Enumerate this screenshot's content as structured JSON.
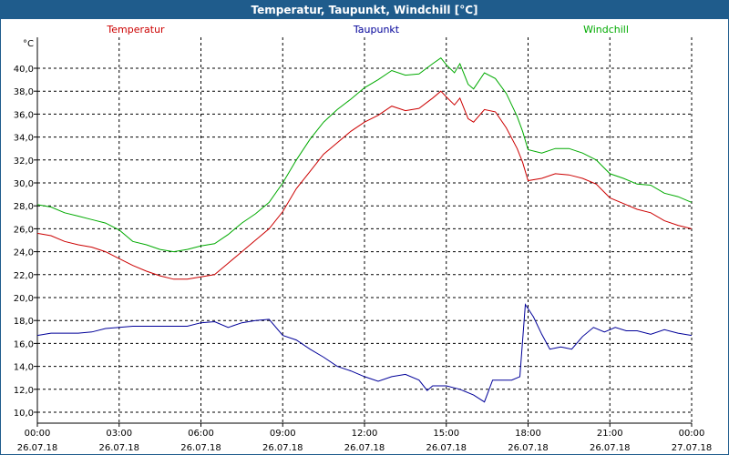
{
  "window": {
    "title": "Temperatur, Taupunkt, Windchill [°C]"
  },
  "chart_data": {
    "type": "line",
    "title": "Temperatur, Taupunkt, Windchill [°C]",
    "ylabel": "°C",
    "ylim": [
      10,
      41
    ],
    "yticks": [
      "40,0",
      "38,0",
      "36,0",
      "34,0",
      "32,0",
      "30,0",
      "28,0",
      "26,0",
      "24,0",
      "22,0",
      "20,0",
      "18,0",
      "16,0",
      "14,0",
      "12,0",
      "10,0"
    ],
    "ytick_values": [
      40,
      38,
      36,
      34,
      32,
      30,
      28,
      26,
      24,
      22,
      20,
      18,
      16,
      14,
      12,
      10
    ],
    "xlim": [
      0,
      24
    ],
    "xticks": [
      {
        "time": "00:00",
        "date": "26.07.18"
      },
      {
        "time": "03:00",
        "date": "26.07.18"
      },
      {
        "time": "06:00",
        "date": "26.07.18"
      },
      {
        "time": "09:00",
        "date": "26.07.18"
      },
      {
        "time": "12:00",
        "date": "26.07.18"
      },
      {
        "time": "15:00",
        "date": "26.07.18"
      },
      {
        "time": "18:00",
        "date": "26.07.18"
      },
      {
        "time": "21:00",
        "date": "26.07.18"
      },
      {
        "time": "00:00",
        "date": "27.07.18"
      }
    ],
    "grid": true,
    "legend_position": "top",
    "series": [
      {
        "name": "Temperatur",
        "color": "#cc0000",
        "points": [
          [
            0,
            25.6
          ],
          [
            0.5,
            25.4
          ],
          [
            1,
            24.9
          ],
          [
            1.5,
            24.6
          ],
          [
            2,
            24.4
          ],
          [
            2.5,
            24.0
          ],
          [
            3,
            23.4
          ],
          [
            3.5,
            22.8
          ],
          [
            4,
            22.3
          ],
          [
            4.5,
            21.9
          ],
          [
            5,
            21.6
          ],
          [
            5.5,
            21.6
          ],
          [
            6,
            21.8
          ],
          [
            6.5,
            22.0
          ],
          [
            7,
            23.0
          ],
          [
            7.5,
            24.0
          ],
          [
            8,
            25.0
          ],
          [
            8.5,
            26.0
          ],
          [
            9,
            27.5
          ],
          [
            9.5,
            29.5
          ],
          [
            10,
            31.0
          ],
          [
            10.5,
            32.5
          ],
          [
            11,
            33.5
          ],
          [
            11.5,
            34.5
          ],
          [
            12,
            35.3
          ],
          [
            12.5,
            35.9
          ],
          [
            13,
            36.7
          ],
          [
            13.5,
            36.3
          ],
          [
            14,
            36.5
          ],
          [
            14.5,
            37.4
          ],
          [
            14.8,
            38.0
          ],
          [
            15,
            37.5
          ],
          [
            15.3,
            36.8
          ],
          [
            15.5,
            37.4
          ],
          [
            15.8,
            35.6
          ],
          [
            16,
            35.3
          ],
          [
            16.4,
            36.4
          ],
          [
            16.8,
            36.2
          ],
          [
            17.2,
            34.8
          ],
          [
            17.6,
            33.0
          ],
          [
            17.8,
            31.8
          ],
          [
            18,
            30.2
          ],
          [
            18.5,
            30.4
          ],
          [
            19,
            30.8
          ],
          [
            19.5,
            30.7
          ],
          [
            20,
            30.4
          ],
          [
            20.5,
            29.9
          ],
          [
            21,
            28.7
          ],
          [
            21.5,
            28.2
          ],
          [
            22,
            27.7
          ],
          [
            22.5,
            27.4
          ],
          [
            23,
            26.7
          ],
          [
            23.5,
            26.3
          ],
          [
            24,
            26.0
          ]
        ]
      },
      {
        "name": "Taupunkt",
        "color": "#000099",
        "points": [
          [
            0,
            16.7
          ],
          [
            0.5,
            16.9
          ],
          [
            1,
            16.9
          ],
          [
            1.5,
            16.9
          ],
          [
            2,
            17.0
          ],
          [
            2.5,
            17.3
          ],
          [
            3,
            17.4
          ],
          [
            3.5,
            17.5
          ],
          [
            4,
            17.5
          ],
          [
            4.5,
            17.5
          ],
          [
            5,
            17.5
          ],
          [
            5.5,
            17.5
          ],
          [
            6,
            17.8
          ],
          [
            6.5,
            17.9
          ],
          [
            7,
            17.4
          ],
          [
            7.5,
            17.8
          ],
          [
            8,
            18.0
          ],
          [
            8.5,
            18.1
          ],
          [
            9,
            16.7
          ],
          [
            9.5,
            16.3
          ],
          [
            10,
            15.5
          ],
          [
            10.5,
            14.8
          ],
          [
            11,
            14.0
          ],
          [
            11.5,
            13.6
          ],
          [
            12,
            13.1
          ],
          [
            12.5,
            12.7
          ],
          [
            13,
            13.1
          ],
          [
            13.5,
            13.3
          ],
          [
            14,
            12.8
          ],
          [
            14.3,
            11.9
          ],
          [
            14.5,
            12.3
          ],
          [
            15,
            12.3
          ],
          [
            15.5,
            12.0
          ],
          [
            16,
            11.5
          ],
          [
            16.4,
            10.9
          ],
          [
            16.7,
            12.8
          ],
          [
            17,
            12.8
          ],
          [
            17.4,
            12.8
          ],
          [
            17.7,
            13.1
          ],
          [
            17.9,
            19.4
          ],
          [
            18.2,
            18.3
          ],
          [
            18.5,
            16.8
          ],
          [
            18.8,
            15.5
          ],
          [
            19.2,
            15.7
          ],
          [
            19.6,
            15.5
          ],
          [
            20,
            16.6
          ],
          [
            20.4,
            17.4
          ],
          [
            20.8,
            17.0
          ],
          [
            21.2,
            17.4
          ],
          [
            21.6,
            17.1
          ],
          [
            22,
            17.1
          ],
          [
            22.5,
            16.8
          ],
          [
            23,
            17.2
          ],
          [
            23.5,
            16.9
          ],
          [
            24,
            16.7
          ]
        ]
      },
      {
        "name": "Windchill",
        "color": "#00aa00",
        "points": [
          [
            0,
            28.1
          ],
          [
            0.5,
            27.9
          ],
          [
            1,
            27.4
          ],
          [
            1.5,
            27.1
          ],
          [
            2,
            26.8
          ],
          [
            2.5,
            26.5
          ],
          [
            3,
            25.9
          ],
          [
            3.5,
            24.9
          ],
          [
            4,
            24.6
          ],
          [
            4.5,
            24.2
          ],
          [
            5,
            24.0
          ],
          [
            5.5,
            24.2
          ],
          [
            6,
            24.5
          ],
          [
            6.5,
            24.7
          ],
          [
            7,
            25.5
          ],
          [
            7.5,
            26.5
          ],
          [
            8,
            27.3
          ],
          [
            8.5,
            28.3
          ],
          [
            9,
            30.0
          ],
          [
            9.5,
            32.0
          ],
          [
            10,
            33.8
          ],
          [
            10.5,
            35.3
          ],
          [
            11,
            36.4
          ],
          [
            11.5,
            37.3
          ],
          [
            12,
            38.3
          ],
          [
            12.5,
            39.0
          ],
          [
            13,
            39.8
          ],
          [
            13.5,
            39.4
          ],
          [
            14,
            39.5
          ],
          [
            14.5,
            40.4
          ],
          [
            14.8,
            40.9
          ],
          [
            15,
            40.3
          ],
          [
            15.3,
            39.6
          ],
          [
            15.5,
            40.4
          ],
          [
            15.8,
            38.6
          ],
          [
            16,
            38.2
          ],
          [
            16.4,
            39.6
          ],
          [
            16.8,
            39.1
          ],
          [
            17.2,
            37.8
          ],
          [
            17.6,
            35.8
          ],
          [
            17.8,
            34.5
          ],
          [
            18,
            32.9
          ],
          [
            18.5,
            32.6
          ],
          [
            19,
            33.0
          ],
          [
            19.5,
            33.0
          ],
          [
            20,
            32.6
          ],
          [
            20.5,
            32.0
          ],
          [
            21,
            30.8
          ],
          [
            21.5,
            30.4
          ],
          [
            22,
            29.9
          ],
          [
            22.5,
            29.8
          ],
          [
            23,
            29.1
          ],
          [
            23.5,
            28.8
          ],
          [
            24,
            28.3
          ]
        ]
      }
    ]
  }
}
